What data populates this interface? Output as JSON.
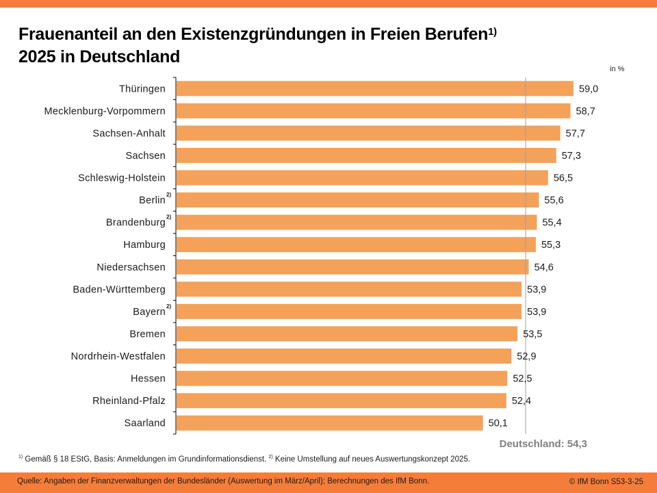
{
  "header": {
    "title_line1": "Frauenanteil an den Existenzgründungen in Freien Berufen",
    "title_note": "1)",
    "title_line2": "2025 in Deutschland",
    "unit": "in %"
  },
  "colors": {
    "accent": "#F57D3A",
    "bar": "#F4A15A",
    "reference": "#A0A0A0",
    "reference_label": "#808080"
  },
  "chart_data": {
    "type": "bar",
    "orientation": "horizontal",
    "title": "Frauenanteil an den Existenzgründungen in Freien Berufen 2025 in Deutschland",
    "unit": "in %",
    "categories": [
      "Thüringen",
      "Mecklenburg-Vorpommern",
      "Sachsen-Anhalt",
      "Sachsen",
      "Schleswig-Holstein",
      "Berlin",
      "Brandenburg",
      "Hamburg",
      "Niedersachsen",
      "Baden-Württemberg",
      "Bayern",
      "Bremen",
      "Nordrhein-Westfalen",
      "Hessen",
      "Rheinland-Pfalz",
      "Saarland"
    ],
    "values": [
      59.0,
      58.7,
      57.7,
      57.3,
      56.5,
      55.6,
      55.4,
      55.3,
      54.6,
      53.9,
      53.9,
      53.5,
      52.9,
      52.5,
      52.4,
      50.1
    ],
    "value_labels": [
      "59,0",
      "58,7",
      "57,7",
      "57,3",
      "56,5",
      "55,6",
      "55,4",
      "55,3",
      "54,6",
      "53,9",
      "53,9",
      "53,5",
      "52,9",
      "52,5",
      "52,4",
      "50,1"
    ],
    "category_notes": [
      "",
      "",
      "",
      "",
      "",
      "2)",
      "2)",
      "",
      "",
      "",
      "2)",
      "",
      "",
      "",
      "",
      ""
    ],
    "reference_line": {
      "label": "Deutschland: 54,3",
      "value": 54.3
    },
    "xlim": [
      20,
      60
    ],
    "grid": false,
    "legend": "none"
  },
  "footnote": {
    "note1_marker": "1)",
    "note1_text": " Gemäß § 18 EStG, Basis: Anmeldungen im Grundinformationsdienst. ",
    "note2_marker": "2)",
    "note2_text": " Keine Umstellung auf neues Auswertungskonzept 2025."
  },
  "footer": {
    "source": "Quelle: Angaben der Finanzverwaltungen der  Bundesländer (Auswertung im März/April); Berechnungen des IfM Bonn.",
    "copyright": "© IfM Bonn  S53-3-25"
  }
}
